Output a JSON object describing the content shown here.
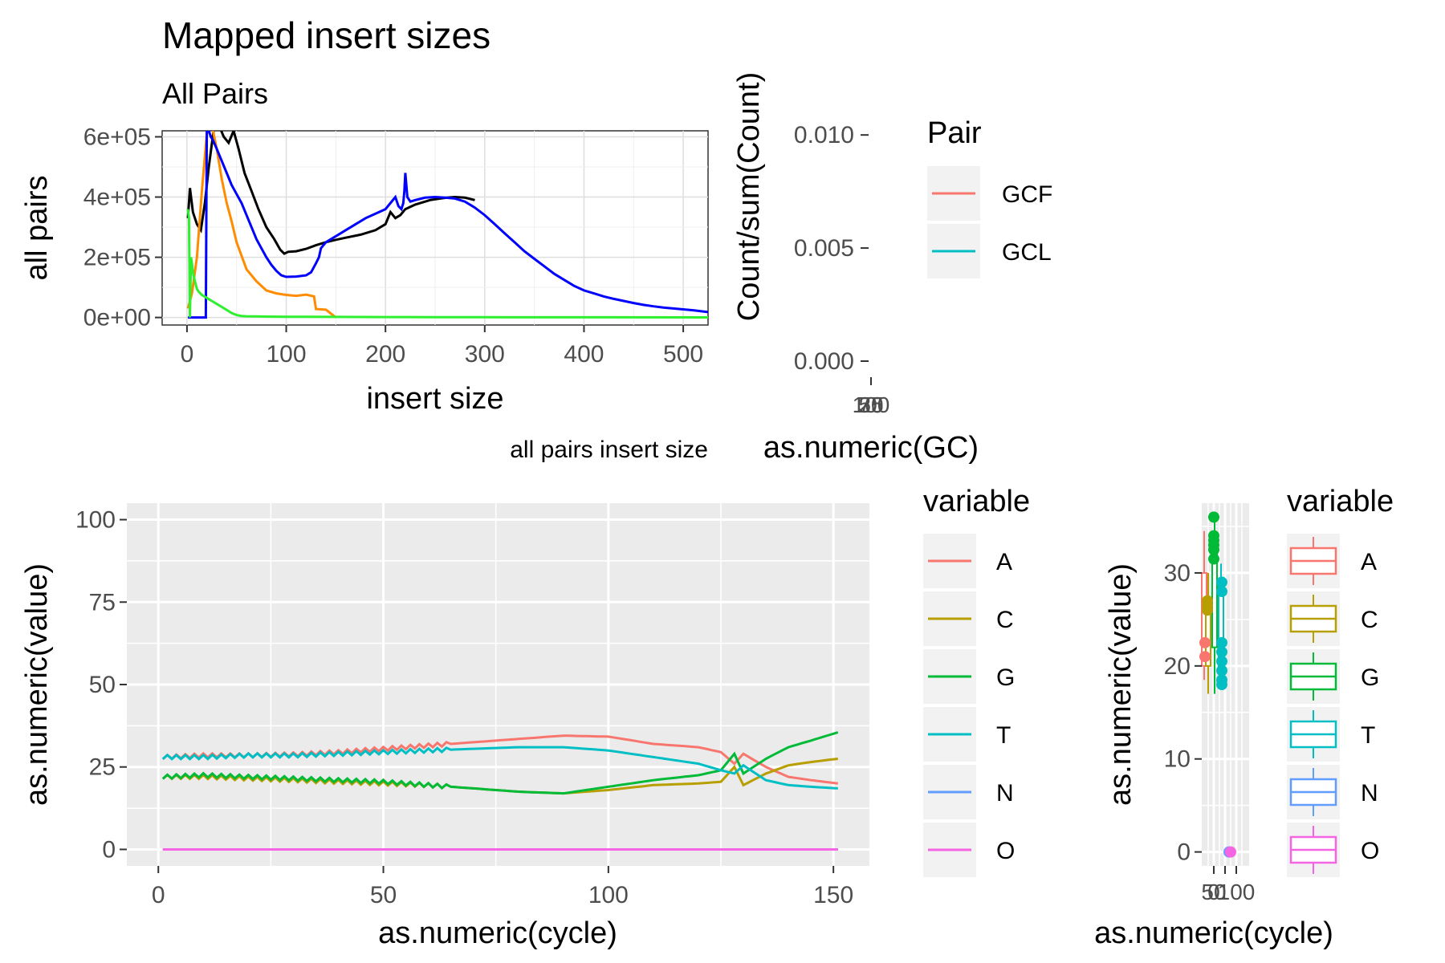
{
  "chart_data": [
    {
      "id": "insert",
      "type": "line",
      "title": "Mapped insert sizes",
      "subtitle": "All Pairs",
      "xlabel": "insert size",
      "ylabel": "all pairs",
      "caption": "all pairs insert size",
      "xlim": [
        -25,
        525
      ],
      "ylim": [
        -25000,
        620000
      ],
      "xticks": [
        0,
        100,
        200,
        300,
        400,
        500
      ],
      "xtick_labels": [
        "0",
        "100",
        "200",
        "300",
        "400",
        "500"
      ],
      "yticks": [
        0,
        200000,
        400000,
        600000
      ],
      "ytick_labels": [
        "0e+00",
        "2e+05",
        "4e+05",
        "6e+05"
      ],
      "grid": true,
      "series": [
        {
          "color": "#000000",
          "x": [
            1,
            3,
            6,
            10,
            14,
            18,
            22,
            28,
            32,
            37,
            42,
            47,
            52,
            58,
            65,
            72,
            80,
            88,
            94,
            98,
            102,
            110,
            120,
            130,
            140,
            150,
            160,
            175,
            190,
            200,
            205,
            210,
            215,
            220,
            230,
            245,
            255,
            262,
            270,
            280,
            290
          ],
          "y": [
            330000,
            430000,
            350000,
            310000,
            290000,
            380000,
            500000,
            650000,
            640000,
            600000,
            580000,
            620000,
            560000,
            480000,
            420000,
            360000,
            300000,
            260000,
            225000,
            212000,
            218000,
            220000,
            228000,
            240000,
            250000,
            258000,
            265000,
            275000,
            290000,
            310000,
            350000,
            330000,
            340000,
            360000,
            375000,
            390000,
            395000,
            398000,
            400000,
            398000,
            390000
          ]
        },
        {
          "color": "#ff8c00",
          "x": [
            1,
            5,
            10,
            15,
            20,
            25,
            30,
            35,
            40,
            45,
            50,
            60,
            70,
            80,
            90,
            100,
            110,
            120,
            128,
            130,
            135,
            140,
            150
          ],
          "y": [
            30000,
            80000,
            200000,
            420000,
            610000,
            640000,
            560000,
            460000,
            380000,
            320000,
            250000,
            160000,
            120000,
            90000,
            80000,
            75000,
            72000,
            76000,
            70000,
            28000,
            27000,
            26000,
            0
          ]
        },
        {
          "color": "#0000ff",
          "x": [
            1,
            19,
            20,
            22,
            24,
            26,
            30,
            35,
            40,
            45,
            50,
            55,
            60,
            65,
            70,
            75,
            80,
            85,
            90,
            95,
            100,
            110,
            120,
            125,
            130,
            133,
            135,
            140,
            150,
            160,
            170,
            180,
            190,
            200,
            205,
            210,
            213,
            216,
            218,
            219,
            220,
            222,
            225,
            230,
            240,
            250,
            260,
            270,
            280,
            290,
            300,
            310,
            320,
            330,
            340,
            350,
            360,
            370,
            380,
            390,
            400,
            410,
            420,
            430,
            440,
            450,
            460,
            470,
            480,
            490,
            500,
            510,
            520,
            525
          ],
          "y": [
            0,
            0,
            630000,
            620000,
            600000,
            590000,
            560000,
            520000,
            480000,
            440000,
            410000,
            380000,
            340000,
            300000,
            260000,
            230000,
            200000,
            175000,
            155000,
            140000,
            135000,
            136000,
            140000,
            150000,
            180000,
            200000,
            230000,
            250000,
            270000,
            290000,
            310000,
            330000,
            345000,
            360000,
            380000,
            400000,
            370000,
            360000,
            380000,
            420000,
            480000,
            400000,
            385000,
            390000,
            398000,
            400000,
            398000,
            395000,
            385000,
            365000,
            340000,
            310000,
            280000,
            250000,
            220000,
            195000,
            170000,
            145000,
            125000,
            105000,
            90000,
            80000,
            70000,
            62000,
            55000,
            48000,
            42000,
            37000,
            33000,
            30000,
            27000,
            24000,
            20000,
            18000
          ]
        },
        {
          "color": "#2ef02e",
          "x": [
            1,
            2,
            3,
            4,
            5,
            6,
            8,
            10,
            12,
            15,
            20,
            25,
            30,
            35,
            40,
            45,
            50,
            55,
            60,
            70,
            80,
            100,
            150,
            200,
            250,
            300,
            400,
            525
          ],
          "y": [
            360000,
            330000,
            0,
            200000,
            180000,
            150000,
            120000,
            95000,
            85000,
            75000,
            65000,
            55000,
            45000,
            35000,
            25000,
            15000,
            8000,
            5000,
            4000,
            3500,
            3000,
            2500,
            2000,
            1500,
            1000,
            800,
            500,
            300
          ]
        }
      ]
    },
    {
      "id": "gc",
      "type": "line",
      "xlabel": "as.numeric(GC)",
      "ylabel": "Count/sum(Count)",
      "ylim": [
        0,
        0.011
      ],
      "yticks": [
        0,
        0.005,
        0.01
      ],
      "ytick_labels": [
        "0.000",
        "0.005",
        "0.010"
      ],
      "xtick_labels": [
        "100",
        "25",
        "50",
        "75"
      ],
      "legend_title": "Pair",
      "legend": [
        {
          "label": "GCF",
          "color": "#f8766d"
        },
        {
          "label": "GCL",
          "color": "#00bfc4"
        }
      ],
      "series": []
    },
    {
      "id": "cycle_lines",
      "type": "line",
      "xlabel": "as.numeric(cycle)",
      "ylabel": "as.numeric(value)",
      "xlim": [
        -7,
        158
      ],
      "ylim": [
        -5,
        105
      ],
      "xticks": [
        0,
        50,
        100,
        150
      ],
      "xtick_labels": [
        "0",
        "50",
        "100",
        "150"
      ],
      "yticks": [
        0,
        25,
        50,
        75,
        100
      ],
      "ytick_labels": [
        "0",
        "25",
        "50",
        "75",
        "100"
      ],
      "grid": true,
      "legend_title": "variable",
      "legend_placement": "right",
      "series": [
        {
          "name": "A",
          "color": "#f8766d",
          "x": [
            1,
            10,
            20,
            30,
            40,
            50,
            60,
            70,
            80,
            90,
            100,
            110,
            120,
            125,
            128,
            130,
            135,
            140,
            145,
            151
          ],
          "y": [
            28,
            28.5,
            28.5,
            28.8,
            29.5,
            30.5,
            31.5,
            32.5,
            33.5,
            34.5,
            34.2,
            32,
            31,
            29.5,
            26,
            29,
            25,
            22,
            21,
            20
          ]
        },
        {
          "name": "C",
          "color": "#b79f00",
          "x": [
            1,
            10,
            20,
            30,
            40,
            50,
            60,
            70,
            80,
            90,
            100,
            110,
            120,
            125,
            128,
            130,
            135,
            140,
            145,
            151
          ],
          "y": [
            22,
            22,
            21.5,
            21,
            20.5,
            20,
            19.5,
            18.5,
            17.5,
            17,
            18,
            19.5,
            20,
            20.5,
            25,
            19.5,
            23,
            25.5,
            26.5,
            27.5
          ]
        },
        {
          "name": "G",
          "color": "#00ba38",
          "x": [
            1,
            10,
            20,
            30,
            40,
            50,
            60,
            70,
            80,
            90,
            100,
            110,
            120,
            125,
            128,
            130,
            135,
            140,
            145,
            151
          ],
          "y": [
            22,
            22.5,
            22,
            21.5,
            21,
            20.5,
            19.5,
            18.5,
            17.5,
            17,
            19,
            21,
            22.5,
            24,
            29,
            23,
            27.5,
            31,
            33,
            35.5
          ]
        },
        {
          "name": "T",
          "color": "#00bfc4",
          "x": [
            1,
            10,
            20,
            30,
            40,
            50,
            60,
            70,
            80,
            90,
            100,
            110,
            120,
            125,
            128,
            130,
            135,
            140,
            145,
            151
          ],
          "y": [
            28,
            28,
            28.5,
            28.5,
            29,
            29.5,
            30,
            30.5,
            31,
            31,
            30,
            28,
            26,
            24,
            23,
            25.5,
            21,
            19.5,
            19,
            18.5
          ]
        },
        {
          "name": "N",
          "color": "#619cff",
          "x": [
            1,
            151
          ],
          "y": [
            0,
            0
          ]
        },
        {
          "name": "O",
          "color": "#f564e3",
          "x": [
            1,
            151
          ],
          "y": [
            0,
            0
          ]
        }
      ]
    },
    {
      "id": "cycle_box",
      "type": "scatter",
      "xlabel": "as.numeric(cycle)",
      "ylabel": "as.numeric(value)",
      "ylim": [
        -1.5,
        37.5
      ],
      "yticks": [
        0,
        10,
        20,
        30
      ],
      "ytick_labels": [
        "0",
        "10",
        "20",
        "30"
      ],
      "xtick_labels": [
        "0",
        "50",
        "100"
      ],
      "legend_title": "variable",
      "legend_placement": "right",
      "legend": [
        {
          "label": "A",
          "color": "#f8766d"
        },
        {
          "label": "C",
          "color": "#b79f00"
        },
        {
          "label": "G",
          "color": "#00ba38"
        },
        {
          "label": "T",
          "color": "#00bfc4"
        },
        {
          "label": "N",
          "color": "#619cff"
        },
        {
          "label": "O",
          "color": "#f564e3"
        }
      ],
      "boxes": [
        {
          "label": "A",
          "color": "#f8766d",
          "low": 18.5,
          "q1": 20,
          "q3": 30,
          "high": 34.5
        },
        {
          "label": "C",
          "color": "#b79f00",
          "low": 17,
          "q1": 20,
          "q3": 27,
          "high": 30
        },
        {
          "label": "G",
          "color": "#00ba38",
          "low": 17,
          "q1": 22,
          "q3": 33,
          "high": 36
        },
        {
          "label": "T",
          "color": "#00bfc4",
          "low": 18,
          "q1": 19.5,
          "q3": 29,
          "high": 31
        }
      ],
      "outliers": [
        {
          "color": "#00ba38",
          "y": [
            36,
            34,
            33.5,
            33,
            32.5,
            31.5
          ]
        },
        {
          "color": "#00bfc4",
          "y": [
            22.5,
            21.5,
            20.5,
            19.5,
            18.5,
            18,
            28,
            29
          ]
        },
        {
          "color": "#b79f00",
          "y": [
            27,
            26.5,
            26
          ]
        },
        {
          "color": "#f8766d",
          "y": [
            21,
            22.5
          ]
        }
      ],
      "zero_points": [
        {
          "color": "#619cff",
          "y": 0
        },
        {
          "color": "#f564e3",
          "y": 0
        }
      ]
    }
  ]
}
